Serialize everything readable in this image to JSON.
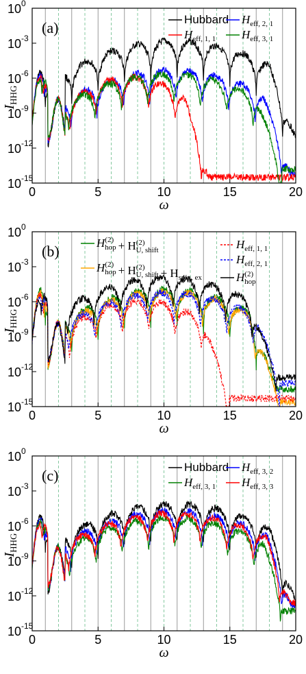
{
  "figure": {
    "xlabel": "ω",
    "ylabel": "I",
    "ylabel_sub": "HHG"
  },
  "chart_data": [
    {
      "panel_label": "(a)",
      "type": "line",
      "xlim": [
        0,
        20
      ],
      "ylim_log10": [
        -15,
        0
      ],
      "yscale": "log",
      "xticks": [
        "0",
        "5",
        "10",
        "15",
        "20"
      ],
      "yticks": [
        "10",
        "10",
        "10",
        "10",
        "10",
        "10"
      ],
      "ytick_exponents": [
        "-15",
        "-12",
        "-9",
        "-6",
        "-3",
        "0"
      ],
      "grid": "vertical lines at odd and even harmonics",
      "legend_position": "top-right",
      "series": [
        {
          "name_main": "Hubbard",
          "name_sub": "",
          "color": "#000000",
          "dash": "solid",
          "peak": -2.5,
          "high_cut": 18.0,
          "floor": -13.2,
          "low_peak": -4.5
        },
        {
          "name_main": "H",
          "name_sub": "eff, 2, 1",
          "color": "#0000ff",
          "dash": "solid",
          "peak": -5.0,
          "high_cut": 17.5,
          "floor": -14.2,
          "low_peak": -4.5
        },
        {
          "name_main": "H",
          "name_sub": "eff, 1, 1",
          "color": "#ff0000",
          "dash": "solid",
          "peak": -5.6,
          "high_cut": 11.5,
          "floor": -14.5,
          "low_peak": -4.5
        },
        {
          "name_main": "H",
          "name_sub": "eff, 3, 1",
          "color": "#008000",
          "dash": "solid",
          "peak": -5.3,
          "high_cut": 17.0,
          "floor": -13.8,
          "low_peak": -4.5
        }
      ]
    },
    {
      "panel_label": "(b)",
      "type": "line",
      "xlim": [
        0,
        20
      ],
      "ylim_log10": [
        -15,
        0
      ],
      "yscale": "log",
      "xticks": [
        "0",
        "5",
        "10",
        "15",
        "20"
      ],
      "yticks": [
        "10",
        "10",
        "10",
        "10",
        "10",
        "10"
      ],
      "ytick_exponents": [
        "-15",
        "-12",
        "-9",
        "-6",
        "-3",
        "0"
      ],
      "grid": "vertical lines at odd and even harmonics",
      "legend_position": "top",
      "series": [
        {
          "name_main": "H",
          "name_sup": "(2)",
          "name_sub": "hop",
          "name_rest": "+ H",
          "name_rest_sup": "(2)",
          "name_rest_sub": "U, shift",
          "color": "#008000",
          "dash": "solid",
          "peak": -4.6,
          "high_cut": 16.5,
          "floor": -13.5,
          "low_peak": -4.0
        },
        {
          "name_main": "H",
          "name_sup": "(2)",
          "name_sub": "hop",
          "name_rest": "+ H",
          "name_rest_sup": "(2)",
          "name_rest_sub": "U, shift",
          "name_extra": "+ H",
          "name_extra_sub": "spin, ex",
          "color": "#ffa500",
          "dash": "solid",
          "peak": -4.8,
          "high_cut": 16.5,
          "floor": -14.6,
          "low_peak": -4.0
        },
        {
          "name_main": "H",
          "name_sub": "eff, 1, 1",
          "color": "#ff0000",
          "dash": "dashed",
          "peak": -5.6,
          "high_cut": 13.0,
          "floor": -14.3,
          "low_peak": -4.0
        },
        {
          "name_main": "H",
          "name_sub": "eff, 2, 1",
          "color": "#0000ff",
          "dash": "dashed",
          "peak": -4.9,
          "high_cut": 17.0,
          "floor": -13.0,
          "low_peak": -4.0
        },
        {
          "name_main": "H",
          "name_sup": "(2)",
          "name_sub": "hop",
          "color": "#000000",
          "dash": "solid",
          "peak": -3.6,
          "high_cut": 16.5,
          "floor": -12.5,
          "low_peak": -4.0
        }
      ]
    },
    {
      "panel_label": "(c)",
      "type": "line",
      "xlim": [
        0,
        20
      ],
      "ylim_log10": [
        -15,
        0
      ],
      "yscale": "log",
      "xticks": [
        "0",
        "5",
        "10",
        "15",
        "20"
      ],
      "yticks": [
        "10",
        "10",
        "10",
        "10",
        "10",
        "10"
      ],
      "ytick_exponents": [
        "-15",
        "-12",
        "-9",
        "-6",
        "-3",
        "0"
      ],
      "grid": "vertical lines at odd and even harmonics",
      "legend_position": "top-right",
      "series": [
        {
          "name_main": "Hubbard",
          "name_sub": "",
          "color": "#000000",
          "dash": "solid",
          "peak": -3.8,
          "high_cut": 18.0,
          "floor": -12.3,
          "low_peak": -4.2
        },
        {
          "name_main": "H",
          "name_sub": "eff, 3, 2",
          "color": "#0000ff",
          "dash": "solid",
          "peak": -4.4,
          "high_cut": 17.8,
          "floor": -12.8,
          "low_peak": -4.2
        },
        {
          "name_main": "H",
          "name_sub": "eff, 3, 1",
          "color": "#008000",
          "dash": "solid",
          "peak": -5.0,
          "high_cut": 17.5,
          "floor": -13.3,
          "low_peak": -4.2
        },
        {
          "name_main": "H",
          "name_sub": "eff, 3, 3",
          "color": "#ff0000",
          "dash": "solid",
          "peak": -4.6,
          "high_cut": 17.8,
          "floor": -12.6,
          "low_peak": -4.2
        }
      ]
    }
  ]
}
